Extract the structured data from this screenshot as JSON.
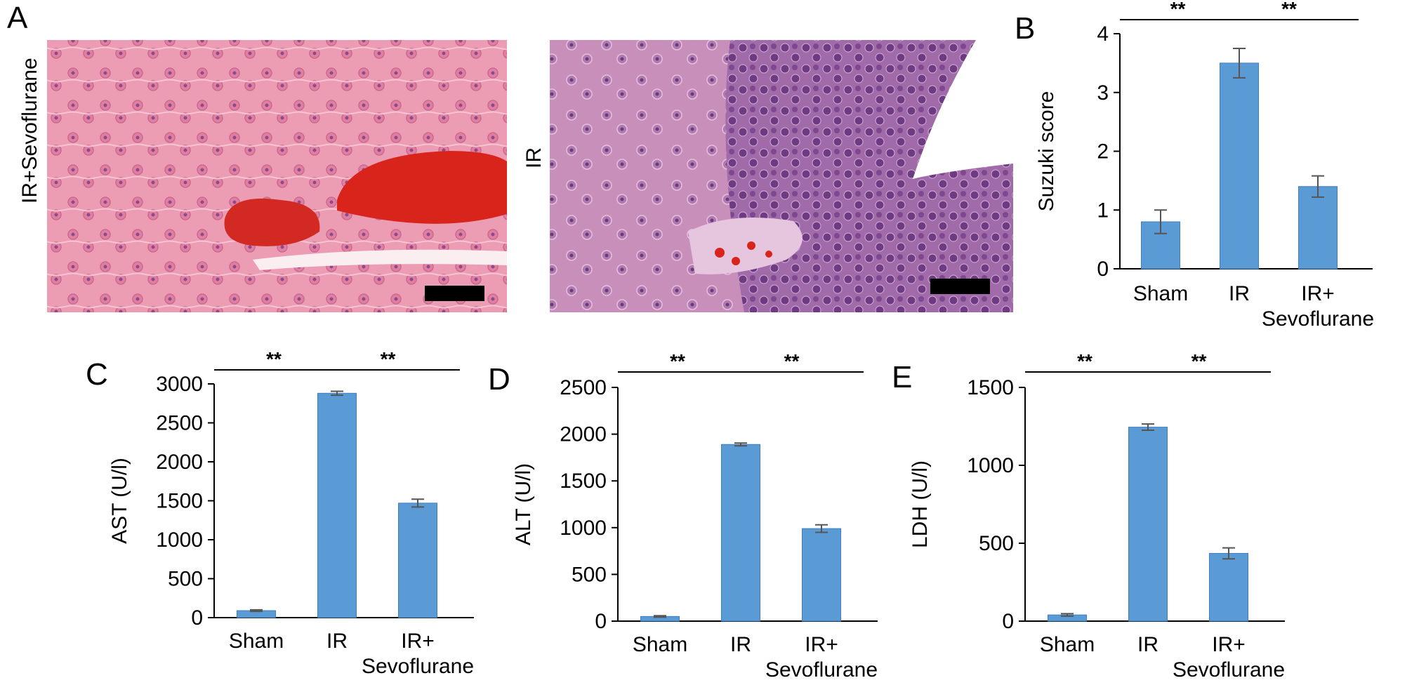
{
  "panel_labels": {
    "a": "A",
    "b": "B",
    "c": "C",
    "d": "D",
    "e": "E"
  },
  "micrographs": [
    {
      "label": "IR+Sevoflurane",
      "tissue_color": "#e58aa4",
      "lesion_color": "#d9241c"
    },
    {
      "label": "IR",
      "tissue_color": "#9a5a9e",
      "lesion_color": "#d9241c"
    }
  ],
  "colors": {
    "bar": "#5b9bd5",
    "bar_edge": "#3f7fbf",
    "error": "#555555",
    "axis": "#000000"
  },
  "chart_data": [
    {
      "id": "b",
      "type": "bar",
      "categories": [
        "Sham",
        "IR",
        "IR+\nSevoflurane"
      ],
      "values": [
        0.8,
        3.5,
        1.4
      ],
      "errors": [
        0.2,
        0.25,
        0.18
      ],
      "ylabel": "Suzuki score",
      "ylim": [
        0,
        4
      ],
      "yticks": [
        0,
        1,
        2,
        3,
        4
      ],
      "significance": [
        "**",
        "**"
      ]
    },
    {
      "id": "c",
      "type": "bar",
      "categories": [
        "Sham",
        "IR",
        "IR+\nSevoflurane"
      ],
      "values": [
        90,
        2880,
        1470
      ],
      "errors": [
        10,
        25,
        50
      ],
      "ylabel": "AST (U/l)",
      "ylim": [
        0,
        3000
      ],
      "yticks": [
        0,
        500,
        1000,
        1500,
        2000,
        2500,
        3000
      ],
      "significance": [
        "**",
        "**"
      ]
    },
    {
      "id": "d",
      "type": "bar",
      "categories": [
        "Sham",
        "IR",
        "IR+\nSevoflurane"
      ],
      "values": [
        50,
        1890,
        990
      ],
      "errors": [
        8,
        15,
        40
      ],
      "ylabel": "ALT (U/l)",
      "ylim": [
        0,
        2500
      ],
      "yticks": [
        0,
        500,
        1000,
        1500,
        2000,
        2500
      ],
      "significance": [
        "**",
        "**"
      ]
    },
    {
      "id": "e",
      "type": "bar",
      "categories": [
        "Sham",
        "IR",
        "IR+\nSevoflurane"
      ],
      "values": [
        40,
        1245,
        435
      ],
      "errors": [
        8,
        20,
        35
      ],
      "ylabel": "LDH (U/l)",
      "ylim": [
        0,
        1500
      ],
      "yticks": [
        0,
        500,
        1000,
        1500
      ],
      "significance": [
        "**",
        "**"
      ]
    }
  ]
}
